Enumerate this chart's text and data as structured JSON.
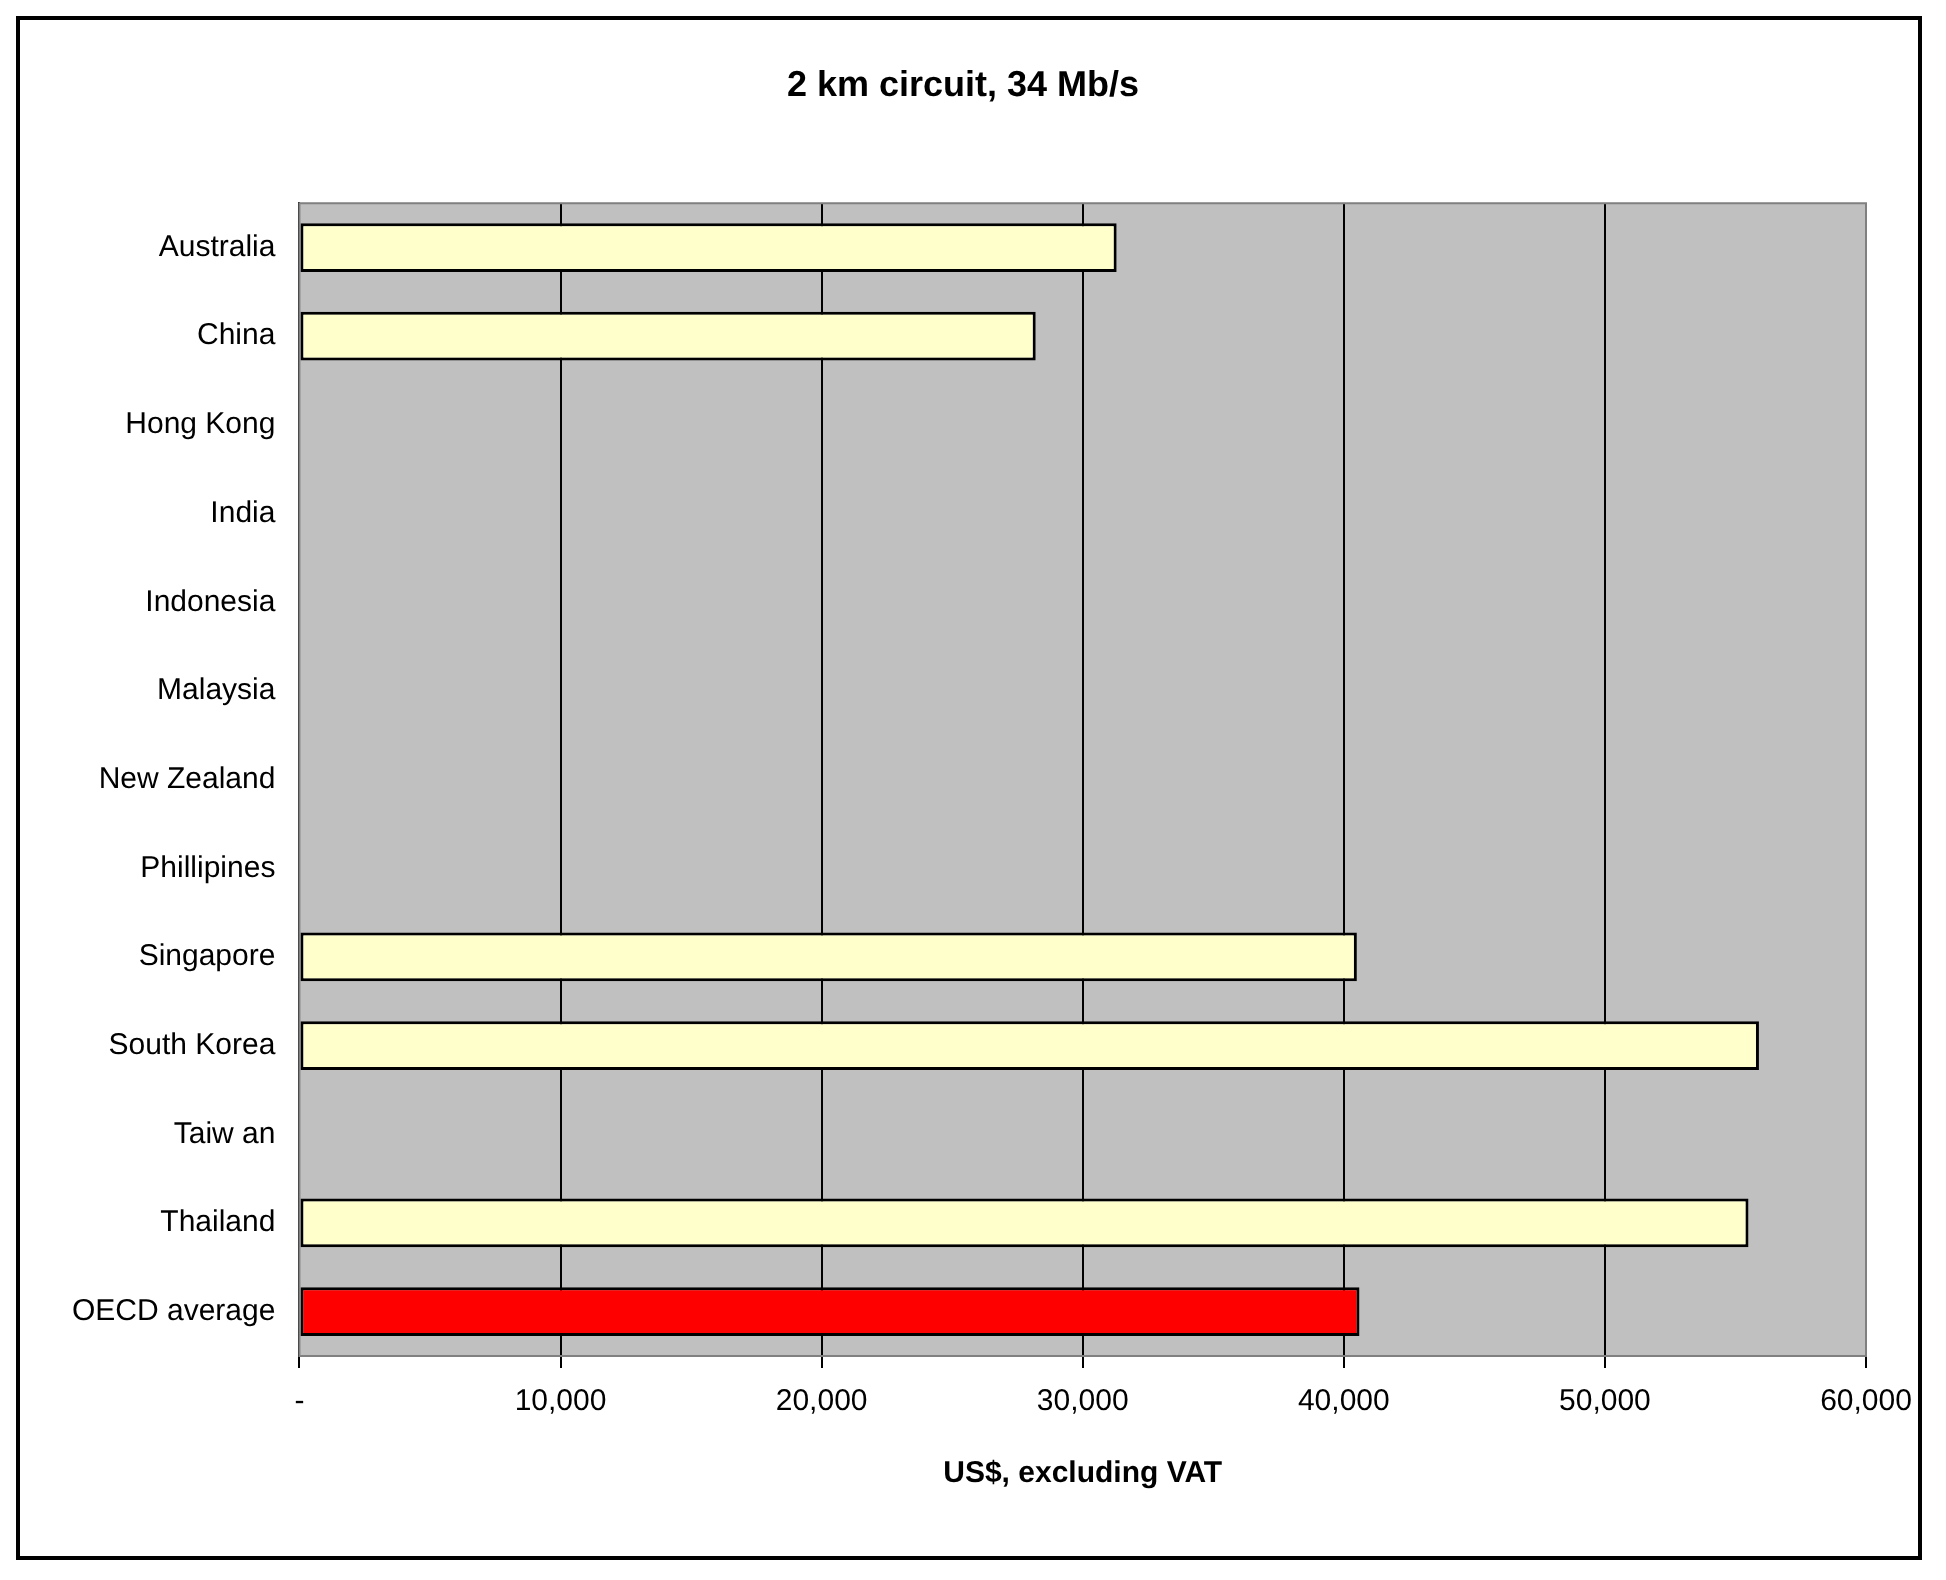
{
  "chart_data": {
    "type": "bar",
    "orientation": "horizontal",
    "title": "2 km circuit, 34 Mb/s",
    "xlabel": "US$, excluding VAT",
    "categories": [
      "Australia",
      "China",
      "Hong Kong",
      "India",
      "Indonesia",
      "Malaysia",
      "New Zealand",
      "Phillipines",
      "Singapore",
      "South Korea",
      "Taiw an",
      "Thailand",
      "OECD average"
    ],
    "values": [
      31300,
      28200,
      null,
      null,
      null,
      null,
      null,
      null,
      40500,
      55900,
      null,
      55500,
      40600
    ],
    "colors": [
      "#ffffcc",
      "#ffffcc",
      "#ffffcc",
      "#ffffcc",
      "#ffffcc",
      "#ffffcc",
      "#ffffcc",
      "#ffffcc",
      "#ffffcc",
      "#ffffcc",
      "#ffffcc",
      "#ffffcc",
      "#ff0000"
    ],
    "xlim": [
      0,
      60000
    ],
    "xticks": [
      {
        "value": 0,
        "label": "-"
      },
      {
        "value": 10000,
        "label": "10,000"
      },
      {
        "value": 20000,
        "label": "20,000"
      },
      {
        "value": 30000,
        "label": "30,000"
      },
      {
        "value": 40000,
        "label": "40,000"
      },
      {
        "value": 50000,
        "label": "50,000"
      },
      {
        "value": 60000,
        "label": "60,000"
      }
    ],
    "grid": "x",
    "legend": false
  }
}
